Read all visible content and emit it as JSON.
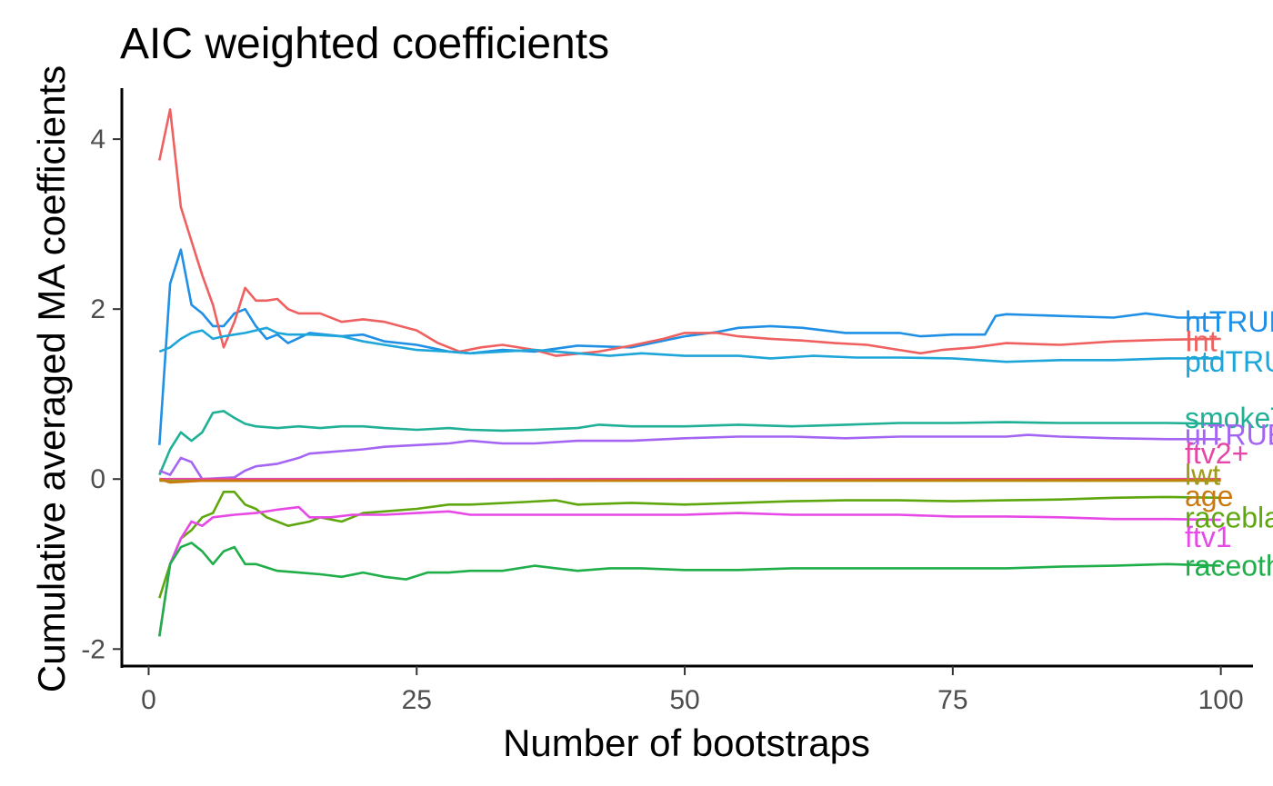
{
  "chart_data": {
    "type": "line",
    "title": "AIC weighted coefficients",
    "xlabel": "Number of bootstraps",
    "ylabel": "Cumulative averaged MA coefficients",
    "xlim": [
      -2.5,
      103
    ],
    "ylim": [
      -2.2,
      4.6
    ],
    "xticks": [
      0,
      25,
      50,
      75,
      100
    ],
    "yticks": [
      -2,
      0,
      2,
      4
    ],
    "grid": false,
    "legend": "labels at line ends",
    "series": [
      {
        "name": "htTRUE",
        "label": "htTRUE",
        "color": "#1F90E6",
        "label_y": 1.85,
        "points": [
          [
            1,
            0.4
          ],
          [
            2,
            2.3
          ],
          [
            3,
            2.7
          ],
          [
            4,
            2.05
          ],
          [
            5,
            1.95
          ],
          [
            6,
            1.8
          ],
          [
            7,
            1.8
          ],
          [
            8,
            1.95
          ],
          [
            9,
            2.0
          ],
          [
            10,
            1.8
          ],
          [
            11,
            1.65
          ],
          [
            12,
            1.7
          ],
          [
            13,
            1.6
          ],
          [
            15,
            1.72
          ],
          [
            18,
            1.68
          ],
          [
            20,
            1.7
          ],
          [
            22,
            1.62
          ],
          [
            25,
            1.58
          ],
          [
            28,
            1.5
          ],
          [
            30,
            1.48
          ],
          [
            33,
            1.52
          ],
          [
            36,
            1.5
          ],
          [
            40,
            1.57
          ],
          [
            45,
            1.55
          ],
          [
            50,
            1.68
          ],
          [
            53,
            1.73
          ],
          [
            55,
            1.78
          ],
          [
            58,
            1.8
          ],
          [
            61,
            1.78
          ],
          [
            65,
            1.72
          ],
          [
            70,
            1.72
          ],
          [
            72,
            1.68
          ],
          [
            75,
            1.7
          ],
          [
            78,
            1.7
          ],
          [
            79,
            1.92
          ],
          [
            80,
            1.94
          ],
          [
            85,
            1.92
          ],
          [
            90,
            1.9
          ],
          [
            93,
            1.95
          ],
          [
            96,
            1.9
          ],
          [
            100,
            1.9
          ]
        ]
      },
      {
        "name": "Int",
        "label": "Int",
        "color": "#EF6060",
        "label_y": 1.62,
        "points": [
          [
            1,
            3.75
          ],
          [
            2,
            4.35
          ],
          [
            3,
            3.2
          ],
          [
            4,
            2.8
          ],
          [
            5,
            2.4
          ],
          [
            6,
            2.05
          ],
          [
            7,
            1.55
          ],
          [
            8,
            1.85
          ],
          [
            9,
            2.25
          ],
          [
            10,
            2.1
          ],
          [
            11,
            2.1
          ],
          [
            12,
            2.12
          ],
          [
            13,
            2.0
          ],
          [
            14,
            1.95
          ],
          [
            16,
            1.95
          ],
          [
            18,
            1.85
          ],
          [
            20,
            1.88
          ],
          [
            22,
            1.85
          ],
          [
            25,
            1.75
          ],
          [
            27,
            1.6
          ],
          [
            29,
            1.5
          ],
          [
            31,
            1.55
          ],
          [
            33,
            1.58
          ],
          [
            36,
            1.52
          ],
          [
            38,
            1.45
          ],
          [
            42,
            1.5
          ],
          [
            45,
            1.57
          ],
          [
            48,
            1.65
          ],
          [
            50,
            1.72
          ],
          [
            53,
            1.72
          ],
          [
            55,
            1.68
          ],
          [
            58,
            1.65
          ],
          [
            61,
            1.63
          ],
          [
            64,
            1.6
          ],
          [
            67,
            1.58
          ],
          [
            70,
            1.52
          ],
          [
            72,
            1.48
          ],
          [
            74,
            1.52
          ],
          [
            77,
            1.55
          ],
          [
            80,
            1.6
          ],
          [
            85,
            1.58
          ],
          [
            90,
            1.62
          ],
          [
            95,
            1.64
          ],
          [
            100,
            1.65
          ]
        ]
      },
      {
        "name": "ptdTRUE",
        "label": "ptdTRUE",
        "color": "#1EA5D9",
        "label_y": 1.38,
        "points": [
          [
            1,
            1.5
          ],
          [
            2,
            1.55
          ],
          [
            3,
            1.65
          ],
          [
            4,
            1.72
          ],
          [
            5,
            1.75
          ],
          [
            6,
            1.65
          ],
          [
            7,
            1.68
          ],
          [
            8,
            1.7
          ],
          [
            9,
            1.72
          ],
          [
            10,
            1.75
          ],
          [
            11,
            1.78
          ],
          [
            12,
            1.72
          ],
          [
            13,
            1.7
          ],
          [
            15,
            1.7
          ],
          [
            18,
            1.68
          ],
          [
            20,
            1.62
          ],
          [
            22,
            1.58
          ],
          [
            25,
            1.52
          ],
          [
            28,
            1.5
          ],
          [
            30,
            1.48
          ],
          [
            33,
            1.5
          ],
          [
            36,
            1.52
          ],
          [
            38,
            1.5
          ],
          [
            40,
            1.48
          ],
          [
            43,
            1.45
          ],
          [
            46,
            1.48
          ],
          [
            50,
            1.45
          ],
          [
            55,
            1.45
          ],
          [
            58,
            1.42
          ],
          [
            62,
            1.45
          ],
          [
            66,
            1.43
          ],
          [
            70,
            1.43
          ],
          [
            75,
            1.42
          ],
          [
            80,
            1.38
          ],
          [
            85,
            1.4
          ],
          [
            90,
            1.4
          ],
          [
            95,
            1.42
          ],
          [
            100,
            1.42
          ]
        ]
      },
      {
        "name": "smokeTRUE",
        "label": "smokeTRUE",
        "color": "#1FB095",
        "label_y": 0.72,
        "points": [
          [
            1,
            0.05
          ],
          [
            2,
            0.35
          ],
          [
            3,
            0.55
          ],
          [
            4,
            0.45
          ],
          [
            5,
            0.55
          ],
          [
            6,
            0.78
          ],
          [
            7,
            0.8
          ],
          [
            8,
            0.72
          ],
          [
            9,
            0.65
          ],
          [
            10,
            0.62
          ],
          [
            12,
            0.6
          ],
          [
            14,
            0.62
          ],
          [
            16,
            0.6
          ],
          [
            18,
            0.62
          ],
          [
            20,
            0.62
          ],
          [
            22,
            0.6
          ],
          [
            25,
            0.58
          ],
          [
            28,
            0.6
          ],
          [
            30,
            0.58
          ],
          [
            33,
            0.57
          ],
          [
            36,
            0.58
          ],
          [
            40,
            0.6
          ],
          [
            42,
            0.64
          ],
          [
            45,
            0.62
          ],
          [
            50,
            0.62
          ],
          [
            55,
            0.64
          ],
          [
            60,
            0.62
          ],
          [
            65,
            0.64
          ],
          [
            70,
            0.66
          ],
          [
            75,
            0.66
          ],
          [
            80,
            0.67
          ],
          [
            85,
            0.66
          ],
          [
            90,
            0.66
          ],
          [
            95,
            0.66
          ],
          [
            100,
            0.65
          ]
        ]
      },
      {
        "name": "uiTRUE",
        "label": "uiTRUE",
        "color": "#A466F2",
        "label_y": 0.52,
        "points": [
          [
            1,
            0.1
          ],
          [
            2,
            0.05
          ],
          [
            3,
            0.25
          ],
          [
            4,
            0.2
          ],
          [
            5,
            0.0
          ],
          [
            8,
            0.02
          ],
          [
            9,
            0.1
          ],
          [
            10,
            0.15
          ],
          [
            12,
            0.18
          ],
          [
            14,
            0.25
          ],
          [
            15,
            0.3
          ],
          [
            17,
            0.32
          ],
          [
            20,
            0.35
          ],
          [
            22,
            0.38
          ],
          [
            25,
            0.4
          ],
          [
            28,
            0.42
          ],
          [
            30,
            0.45
          ],
          [
            33,
            0.42
          ],
          [
            36,
            0.42
          ],
          [
            40,
            0.45
          ],
          [
            45,
            0.45
          ],
          [
            50,
            0.48
          ],
          [
            55,
            0.5
          ],
          [
            60,
            0.5
          ],
          [
            65,
            0.48
          ],
          [
            70,
            0.5
          ],
          [
            75,
            0.5
          ],
          [
            80,
            0.5
          ],
          [
            82,
            0.52
          ],
          [
            85,
            0.5
          ],
          [
            90,
            0.48
          ],
          [
            95,
            0.47
          ],
          [
            100,
            0.47
          ]
        ]
      },
      {
        "name": "ftv2+",
        "label": "ftv2+",
        "color": "#E646A6",
        "label_y": 0.3,
        "points": [
          [
            1,
            0.0
          ],
          [
            100,
            0.0
          ]
        ]
      },
      {
        "name": "lwt",
        "label": "lwt",
        "color": "#9E9A1A",
        "label_y": 0.05,
        "points": [
          [
            1,
            -0.02
          ],
          [
            100,
            -0.02
          ]
        ]
      },
      {
        "name": "age",
        "label": "age",
        "color": "#C9790E",
        "label_y": -0.2,
        "points": [
          [
            1,
            0.0
          ],
          [
            2,
            -0.04
          ],
          [
            5,
            -0.02
          ],
          [
            10,
            -0.02
          ],
          [
            100,
            -0.01
          ]
        ]
      },
      {
        "name": "raceblack",
        "label": "raceblack",
        "color": "#5FA70E",
        "label_y": -0.45,
        "points": [
          [
            1,
            -1.4
          ],
          [
            2,
            -1.0
          ],
          [
            3,
            -0.7
          ],
          [
            4,
            -0.6
          ],
          [
            5,
            -0.45
          ],
          [
            6,
            -0.4
          ],
          [
            7,
            -0.15
          ],
          [
            8,
            -0.15
          ],
          [
            9,
            -0.3
          ],
          [
            10,
            -0.35
          ],
          [
            11,
            -0.45
          ],
          [
            12,
            -0.5
          ],
          [
            13,
            -0.55
          ],
          [
            15,
            -0.5
          ],
          [
            16,
            -0.45
          ],
          [
            18,
            -0.5
          ],
          [
            20,
            -0.4
          ],
          [
            22,
            -0.38
          ],
          [
            25,
            -0.35
          ],
          [
            28,
            -0.3
          ],
          [
            30,
            -0.3
          ],
          [
            35,
            -0.27
          ],
          [
            38,
            -0.25
          ],
          [
            40,
            -0.3
          ],
          [
            45,
            -0.28
          ],
          [
            50,
            -0.3
          ],
          [
            55,
            -0.28
          ],
          [
            60,
            -0.26
          ],
          [
            65,
            -0.25
          ],
          [
            70,
            -0.25
          ],
          [
            75,
            -0.26
          ],
          [
            80,
            -0.25
          ],
          [
            85,
            -0.24
          ],
          [
            90,
            -0.22
          ],
          [
            95,
            -0.21
          ],
          [
            100,
            -0.22
          ]
        ]
      },
      {
        "name": "ftv1",
        "label": "ftv1",
        "color": "#E649E6",
        "label_y": -0.68,
        "points": [
          [
            1,
            -1.85
          ],
          [
            2,
            -1.0
          ],
          [
            3,
            -0.7
          ],
          [
            4,
            -0.5
          ],
          [
            5,
            -0.55
          ],
          [
            6,
            -0.45
          ],
          [
            8,
            -0.42
          ],
          [
            10,
            -0.4
          ],
          [
            12,
            -0.36
          ],
          [
            14,
            -0.33
          ],
          [
            15,
            -0.45
          ],
          [
            17,
            -0.45
          ],
          [
            19,
            -0.42
          ],
          [
            22,
            -0.42
          ],
          [
            25,
            -0.4
          ],
          [
            28,
            -0.38
          ],
          [
            30,
            -0.42
          ],
          [
            35,
            -0.42
          ],
          [
            40,
            -0.42
          ],
          [
            45,
            -0.42
          ],
          [
            50,
            -0.42
          ],
          [
            55,
            -0.4
          ],
          [
            60,
            -0.42
          ],
          [
            65,
            -0.42
          ],
          [
            70,
            -0.42
          ],
          [
            75,
            -0.44
          ],
          [
            80,
            -0.44
          ],
          [
            85,
            -0.45
          ],
          [
            90,
            -0.47
          ],
          [
            95,
            -0.47
          ],
          [
            100,
            -0.48
          ]
        ]
      },
      {
        "name": "raceother",
        "label": "raceother",
        "color": "#1FAE4A",
        "label_y": -1.02,
        "points": [
          [
            1,
            -1.85
          ],
          [
            2,
            -1.0
          ],
          [
            3,
            -0.8
          ],
          [
            4,
            -0.75
          ],
          [
            5,
            -0.85
          ],
          [
            6,
            -1.0
          ],
          [
            7,
            -0.85
          ],
          [
            8,
            -0.8
          ],
          [
            9,
            -1.0
          ],
          [
            10,
            -1.0
          ],
          [
            12,
            -1.08
          ],
          [
            14,
            -1.1
          ],
          [
            16,
            -1.12
          ],
          [
            18,
            -1.15
          ],
          [
            20,
            -1.1
          ],
          [
            22,
            -1.15
          ],
          [
            24,
            -1.18
          ],
          [
            26,
            -1.1
          ],
          [
            28,
            -1.1
          ],
          [
            30,
            -1.08
          ],
          [
            33,
            -1.08
          ],
          [
            36,
            -1.02
          ],
          [
            38,
            -1.05
          ],
          [
            40,
            -1.08
          ],
          [
            43,
            -1.05
          ],
          [
            46,
            -1.05
          ],
          [
            50,
            -1.07
          ],
          [
            55,
            -1.07
          ],
          [
            60,
            -1.05
          ],
          [
            65,
            -1.05
          ],
          [
            70,
            -1.05
          ],
          [
            75,
            -1.05
          ],
          [
            80,
            -1.05
          ],
          [
            85,
            -1.03
          ],
          [
            90,
            -1.02
          ],
          [
            95,
            -1.0
          ],
          [
            100,
            -1.02
          ]
        ]
      }
    ]
  }
}
